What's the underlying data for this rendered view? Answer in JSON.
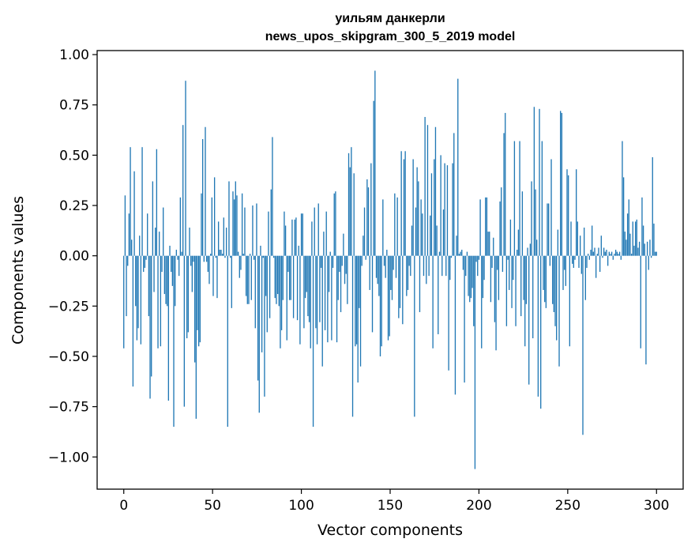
{
  "chart_data": {
    "type": "bar",
    "title": "уильям данкерли",
    "subtitle": "news_upos_skipgram_300_5_2019 model",
    "xlabel": "Vector components",
    "ylabel": "Components values",
    "xlim": [
      -15,
      315
    ],
    "ylim": [
      -1.16,
      1.02
    ],
    "xticks": [
      0,
      50,
      100,
      150,
      200,
      250,
      300
    ],
    "yticks": [
      1.0,
      0.75,
      0.5,
      0.25,
      0.0,
      -0.25,
      -0.5,
      -0.75,
      -1.0
    ],
    "ytick_labels": [
      "1.00",
      "0.75",
      "0.50",
      "0.25",
      "0.00",
      "−0.25",
      "−0.50",
      "−0.75",
      "−1.00"
    ],
    "bar_color": "#1f77b4",
    "grid": false,
    "values": [
      -0.46,
      0.3,
      -0.3,
      -0.05,
      0.21,
      0.54,
      0.08,
      -0.65,
      0.42,
      -0.25,
      -0.42,
      -0.36,
      0.1,
      -0.44,
      0.54,
      -0.08,
      -0.06,
      -0.02,
      0.21,
      -0.3,
      -0.71,
      -0.6,
      0.37,
      -0.18,
      0.14,
      0.53,
      -0.46,
      0.12,
      -0.45,
      -0.08,
      0.24,
      -0.19,
      -0.24,
      -0.25,
      -0.72,
      0.05,
      -0.08,
      -0.15,
      -0.85,
      -0.25,
      0.03,
      -0.02,
      -0.1,
      0.29,
      0.02,
      0.65,
      -0.75,
      0.87,
      -0.41,
      -0.38,
      0.14,
      -0.05,
      -0.18,
      -0.03,
      -0.53,
      -0.81,
      -0.37,
      -0.45,
      -0.43,
      0.31,
      0.58,
      -0.03,
      0.64,
      -0.03,
      -0.08,
      -0.14,
      0.01,
      0.29,
      -0.2,
      0.39,
      -0.01,
      -0.21,
      0.17,
      0.03,
      0.03,
      0.01,
      0.19,
      -0.01,
      0.14,
      -0.85,
      0.37,
      -0.01,
      -0.26,
      0.32,
      0.28,
      0.37,
      0.3,
      0.02,
      -0.11,
      -0.07,
      0.31,
      0.01,
      0.24,
      -0.2,
      -0.24,
      -0.24,
      0.01,
      -0.22,
      0.25,
      -0.02,
      -0.36,
      0.26,
      -0.62,
      -0.78,
      0.05,
      -0.48,
      -0.01,
      -0.7,
      -0.2,
      -0.38,
      0.22,
      -0.31,
      0.33,
      0.59,
      -0.01,
      -0.21,
      -0.24,
      -0.19,
      -0.25,
      -0.46,
      -0.37,
      -0.22,
      0.22,
      0.15,
      -0.42,
      -0.08,
      -0.22,
      -0.22,
      0.18,
      -0.31,
      0.18,
      0.19,
      -0.32,
      0.05,
      -0.44,
      0.21,
      0.21,
      -0.36,
      -0.21,
      -0.18,
      -0.3,
      -0.33,
      -0.46,
      0.17,
      -0.85,
      0.24,
      -0.36,
      -0.44,
      0.26,
      -0.33,
      -0.06,
      -0.55,
      0.12,
      -0.37,
      0.22,
      -0.43,
      -0.18,
      0.02,
      -0.42,
      -0.06,
      0.31,
      0.32,
      -0.43,
      -0.22,
      -0.08,
      -0.28,
      -0.05,
      0.11,
      -0.14,
      -0.09,
      -0.24,
      0.51,
      0.44,
      0.54,
      -0.8,
      0.41,
      -0.45,
      -0.44,
      -0.63,
      -0.26,
      -0.55,
      -0.05,
      0.1,
      0.24,
      -0.02,
      0.38,
      0.34,
      -0.17,
      0.46,
      -0.38,
      0.77,
      0.92,
      -0.11,
      -0.14,
      -0.2,
      -0.5,
      -0.45,
      0.28,
      -0.05,
      -0.11,
      0.03,
      -0.42,
      -0.4,
      -0.17,
      -0.22,
      -0.07,
      0.31,
      -0.11,
      0.29,
      -0.31,
      -0.26,
      0.52,
      -0.34,
      0.48,
      0.52,
      -0.2,
      -0.17,
      -0.05,
      -0.1,
      0.15,
      0.48,
      -0.8,
      0.24,
      0.44,
      0.37,
      -0.28,
      0.28,
      0.21,
      -0.1,
      0.69,
      -0.14,
      0.65,
      -0.1,
      0.2,
      0.41,
      -0.46,
      0.48,
      0.64,
      0.15,
      -0.39,
      0.02,
      0.5,
      -0.1,
      0.23,
      0.46,
      -0.1,
      0.45,
      -0.57,
      -0.12,
      -0.01,
      0.46,
      0.61,
      -0.69,
      0.1,
      0.88,
      0.01,
      0.02,
      0.03,
      -0.07,
      -0.63,
      -0.1,
      0.02,
      -0.2,
      -0.23,
      -0.21,
      -0.16,
      -0.35,
      -1.06,
      -0.03,
      -0.1,
      -0.02,
      0.28,
      -0.46,
      -0.21,
      -0.12,
      0.29,
      0.29,
      0.12,
      0.12,
      -0.23,
      -0.06,
      0.09,
      -0.33,
      -0.47,
      -0.07,
      -0.22,
      0.27,
      0.34,
      -0.08,
      0.61,
      0.71,
      -0.35,
      -0.02,
      -0.17,
      0.18,
      -0.26,
      -0.12,
      0.57,
      -0.35,
      0.03,
      0.13,
      0.57,
      -0.3,
      0.32,
      -0.22,
      -0.45,
      -0.24,
      0.04,
      -0.64,
      0.06,
      0.37,
      -0.41,
      0.74,
      0.33,
      0.08,
      -0.7,
      0.73,
      -0.76,
      0.57,
      -0.17,
      -0.23,
      -0.26,
      0.26,
      0.26,
      -0.05,
      0.48,
      -0.24,
      -0.28,
      -0.35,
      -0.42,
      0.13,
      -0.55,
      0.72,
      0.71,
      -0.17,
      -0.07,
      -0.15,
      0.43,
      0.4,
      -0.45,
      0.17,
      -0.04,
      -0.06,
      -0.02,
      0.43,
      0.17,
      -0.06,
      0.1,
      -0.09,
      -0.89,
      0.14,
      -0.22,
      -0.06,
      0.01,
      -0.02,
      0.03,
      0.15,
      0.02,
      0.04,
      -0.11,
      0.01,
      0.04,
      -0.08,
      0.1,
      -0.01,
      0.04,
      0.02,
      0.03,
      -0.05,
      0.02,
      0.01,
      0.02,
      -0.02,
      0.01,
      0.03,
      0.02,
      0.01,
      0.02,
      -0.02,
      0.57,
      0.39,
      0.12,
      0.08,
      0.21,
      0.28,
      0.11,
      0.01,
      0.17,
      0.05,
      0.17,
      0.18,
      0.04,
      0.07,
      -0.46,
      0.29,
      0.15,
      0.06,
      -0.54,
      0.07,
      -0.07,
      0.08,
      -0.01,
      0.49,
      0.16,
      0.02,
      0.02
    ]
  }
}
